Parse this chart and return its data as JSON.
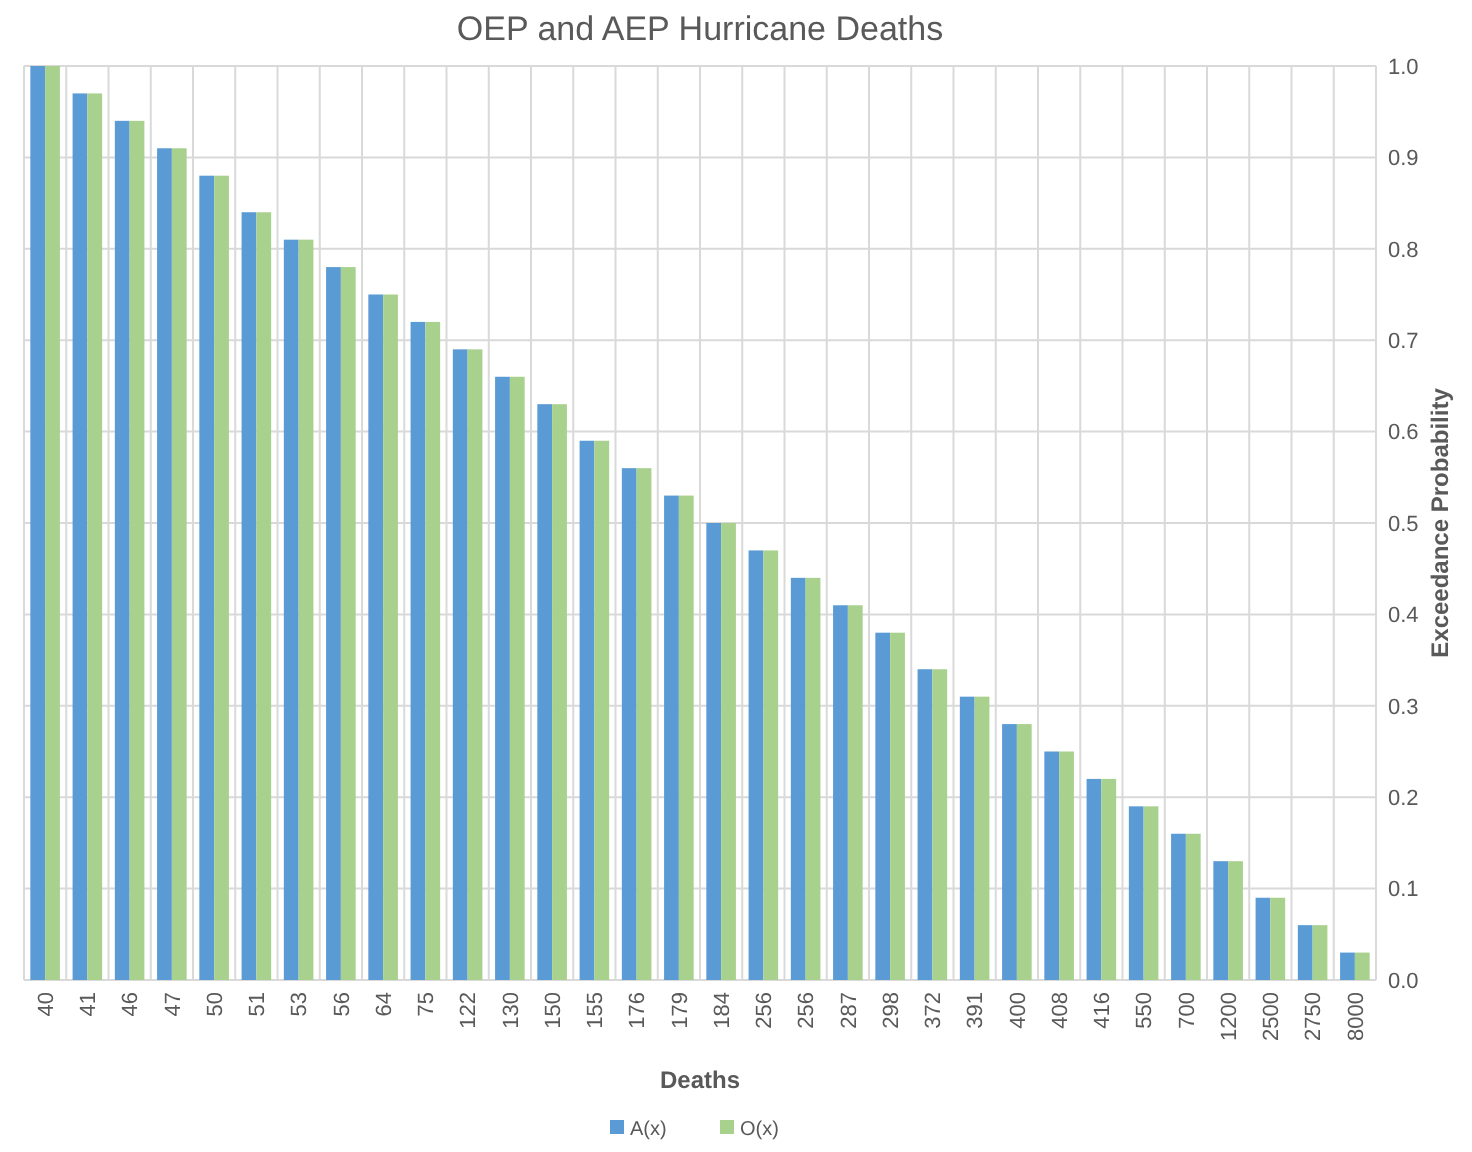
{
  "chart_data": {
    "type": "bar",
    "title": "OEP and AEP Hurricane Deaths",
    "xlabel": "Deaths",
    "ylabel": "Exceedance Probability",
    "categories": [
      "40",
      "41",
      "46",
      "47",
      "50",
      "51",
      "53",
      "56",
      "64",
      "75",
      "122",
      "130",
      "150",
      "155",
      "176",
      "179",
      "184",
      "256",
      "256",
      "287",
      "298",
      "372",
      "391",
      "400",
      "408",
      "416",
      "550",
      "700",
      "1200",
      "2500",
      "2750",
      "8000"
    ],
    "series": [
      {
        "name": "A(x)",
        "color": "#5b9bd5",
        "values": [
          1.0,
          0.97,
          0.94,
          0.91,
          0.88,
          0.84,
          0.81,
          0.78,
          0.75,
          0.72,
          0.69,
          0.66,
          0.63,
          0.59,
          0.56,
          0.53,
          0.5,
          0.47,
          0.44,
          0.41,
          0.38,
          0.34,
          0.31,
          0.28,
          0.25,
          0.22,
          0.19,
          0.16,
          0.13,
          0.09,
          0.06,
          0.03
        ]
      },
      {
        "name": "O(x)",
        "color": "#a9d18e",
        "values": [
          1.0,
          0.97,
          0.94,
          0.91,
          0.88,
          0.84,
          0.81,
          0.78,
          0.75,
          0.72,
          0.69,
          0.66,
          0.63,
          0.59,
          0.56,
          0.53,
          0.5,
          0.47,
          0.44,
          0.41,
          0.38,
          0.34,
          0.31,
          0.28,
          0.25,
          0.22,
          0.19,
          0.16,
          0.13,
          0.09,
          0.06,
          0.03
        ]
      }
    ],
    "ylim": [
      0,
      1
    ],
    "yticks": [
      {
        "value": 0,
        "label": "0.0"
      },
      0.1,
      0.2,
      0.3,
      0.4,
      0.5,
      0.6,
      0.7,
      0.8,
      0.9,
      {
        "value": 1,
        "label": "1.0"
      }
    ],
    "grid": true,
    "legend": "bottom"
  }
}
